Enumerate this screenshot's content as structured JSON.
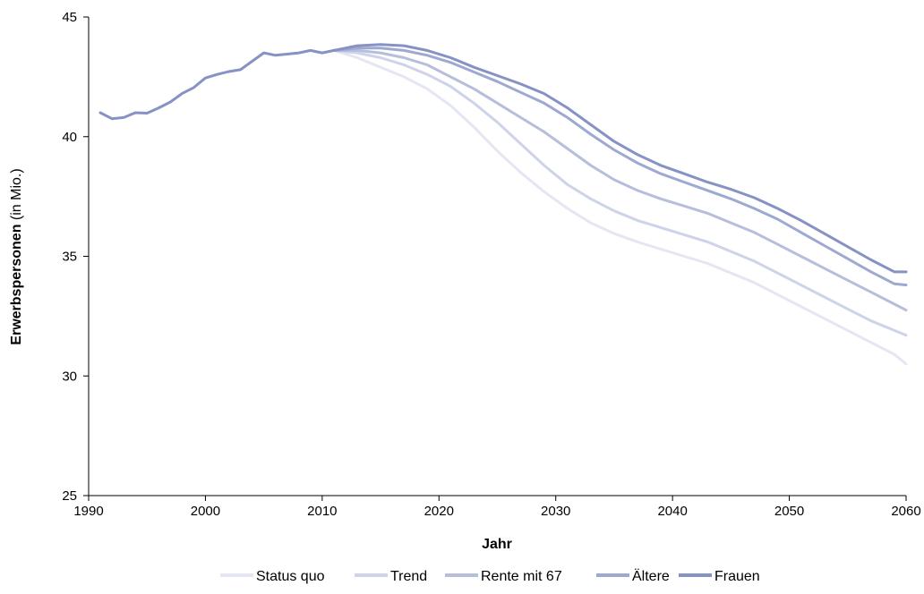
{
  "chart_data": {
    "type": "line",
    "xlabel": "Jahr",
    "ylabel_bold": "Erwerbspersonen",
    "ylabel_unit": " (in Mio.)",
    "xlim": [
      1990,
      2060
    ],
    "ylim": [
      25,
      45
    ],
    "xticks": [
      1990,
      2000,
      2010,
      2020,
      2030,
      2040,
      2050,
      2060
    ],
    "yticks": [
      25,
      30,
      35,
      40,
      45
    ],
    "grid": false,
    "legend_position": "bottom",
    "history": {
      "x": [
        1991,
        1992,
        1993,
        1994,
        1995,
        1996,
        1997,
        1998,
        1999,
        2000,
        2001,
        2002,
        2003,
        2004,
        2005,
        2006,
        2007,
        2008,
        2009,
        2010,
        2011
      ],
      "y": [
        41.0,
        40.75,
        40.8,
        41.0,
        40.98,
        41.2,
        41.45,
        41.8,
        42.05,
        42.45,
        42.6,
        42.72,
        42.8,
        43.15,
        43.5,
        43.4,
        43.45,
        43.5,
        43.6,
        43.5,
        43.6
      ]
    },
    "projection_x": [
      2011,
      2013,
      2015,
      2017,
      2019,
      2021,
      2023,
      2025,
      2027,
      2029,
      2031,
      2033,
      2035,
      2037,
      2039,
      2041,
      2043,
      2045,
      2047,
      2049,
      2051,
      2053,
      2055,
      2057,
      2059,
      2060
    ],
    "series": [
      {
        "name": "Status quo",
        "color": "#e4e7f3",
        "values": [
          43.6,
          43.3,
          42.9,
          42.5,
          42.0,
          41.3,
          40.4,
          39.4,
          38.5,
          37.7,
          37.0,
          36.4,
          35.95,
          35.6,
          35.3,
          35.0,
          34.7,
          34.3,
          33.9,
          33.4,
          32.9,
          32.4,
          31.9,
          31.4,
          30.9,
          30.5
        ]
      },
      {
        "name": "Trend",
        "color": "#cdd3e8",
        "values": [
          43.6,
          43.5,
          43.3,
          43.0,
          42.6,
          42.1,
          41.4,
          40.6,
          39.7,
          38.8,
          38.0,
          37.4,
          36.9,
          36.5,
          36.2,
          35.9,
          35.6,
          35.2,
          34.8,
          34.3,
          33.8,
          33.3,
          32.8,
          32.3,
          31.9,
          31.7
        ]
      },
      {
        "name": "Rente mit 67",
        "color": "#b6bedc",
        "values": [
          43.6,
          43.6,
          43.5,
          43.3,
          43.0,
          42.5,
          42.0,
          41.4,
          40.8,
          40.2,
          39.5,
          38.8,
          38.2,
          37.75,
          37.4,
          37.1,
          36.8,
          36.4,
          36.0,
          35.5,
          35.0,
          34.5,
          34.0,
          33.5,
          33.0,
          32.75
        ]
      },
      {
        "name": "Ältere",
        "color": "#9ea9d1",
        "values": [
          43.6,
          43.7,
          43.7,
          43.6,
          43.4,
          43.1,
          42.7,
          42.3,
          41.85,
          41.4,
          40.8,
          40.1,
          39.45,
          38.9,
          38.45,
          38.1,
          37.75,
          37.4,
          37.0,
          36.55,
          36.0,
          35.45,
          34.9,
          34.35,
          33.85,
          33.8
        ]
      },
      {
        "name": "Frauen",
        "color": "#8792c4",
        "values": [
          43.6,
          43.8,
          43.85,
          43.8,
          43.6,
          43.3,
          42.9,
          42.55,
          42.2,
          41.8,
          41.2,
          40.5,
          39.8,
          39.25,
          38.8,
          38.45,
          38.1,
          37.8,
          37.45,
          37.0,
          36.5,
          35.95,
          35.4,
          34.85,
          34.35,
          34.35
        ]
      }
    ]
  }
}
